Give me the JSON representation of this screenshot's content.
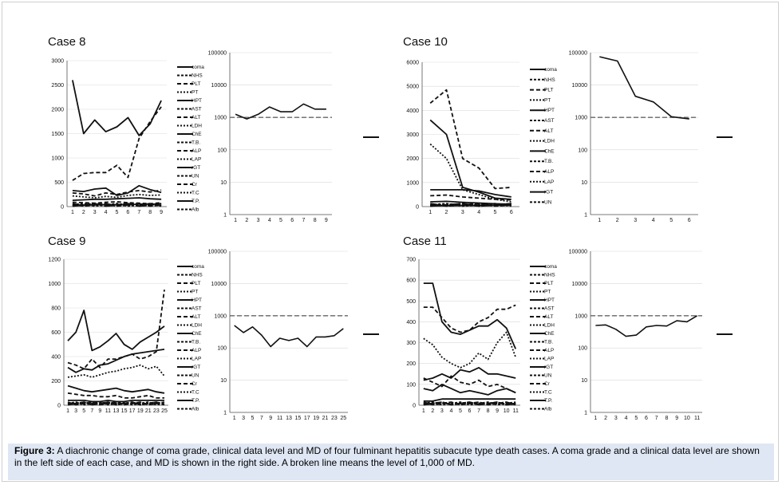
{
  "figure": {
    "caption_label": "Figure 3:",
    "caption_text": "A diachronic change of coma grade, clinical data level and MD of four fulminant hepatitis subacute type death cases. A coma grade and a clinical data level are shown in the left side of each case, and MD is shown in the right side. A broken line means the level of 1,000 of MD."
  },
  "chart_data": [
    {
      "type": "line",
      "panel": "Case 8 clinical",
      "title": "Case 8",
      "x": [
        1,
        2,
        3,
        4,
        5,
        6,
        7,
        8,
        9
      ],
      "ylim": [
        0,
        3000
      ],
      "yticks": [
        0,
        500,
        1000,
        1500,
        2000,
        2500,
        3000
      ],
      "legend": [
        "coma",
        "NHS",
        "PLT",
        "PT",
        "HPT",
        "AST",
        "ALT",
        "LDH",
        "ChE",
        "T.B.",
        "ALP",
        "LAP",
        "rGT",
        "UN",
        "Cr",
        "T.C",
        "T.P.",
        "Alb"
      ],
      "series": [
        {
          "name": "AST",
          "style": "solid",
          "values": [
            2600,
            1500,
            1780,
            1540,
            1640,
            1830,
            1460,
            1700,
            2180
          ]
        },
        {
          "name": "LDH",
          "style": "dashed",
          "values": [
            540,
            680,
            700,
            700,
            850,
            600,
            1400,
            1750,
            2050
          ]
        },
        {
          "name": "ALT",
          "style": "solid",
          "values": [
            330,
            310,
            360,
            380,
            230,
            280,
            430,
            350,
            290
          ]
        },
        {
          "name": "ALP",
          "style": "dashed",
          "values": [
            280,
            260,
            220,
            280,
            250,
            300,
            330,
            300,
            340
          ]
        },
        {
          "name": "LAP",
          "style": "dotted",
          "values": [
            220,
            200,
            180,
            210,
            190,
            230,
            250,
            230,
            240
          ]
        },
        {
          "name": "rGT",
          "style": "solid",
          "values": [
            130,
            140,
            150,
            150,
            160,
            170,
            180,
            160,
            150
          ]
        },
        {
          "name": "PLT",
          "style": "dashed",
          "values": [
            90,
            80,
            70,
            90,
            100,
            80,
            70,
            60,
            80
          ]
        },
        {
          "name": "coma",
          "style": "solid",
          "values": [
            30,
            30,
            40,
            40,
            40,
            40,
            50,
            50,
            50
          ]
        }
      ]
    },
    {
      "type": "line",
      "panel": "Case 8 MD",
      "x": [
        1,
        2,
        3,
        4,
        5,
        6,
        7,
        8,
        9
      ],
      "yscale": "log",
      "ylim": [
        1,
        100000
      ],
      "yticks": [
        1,
        10,
        100,
        1000,
        10000,
        100000
      ],
      "legend": [
        "MD"
      ],
      "reference_line": 1000,
      "series": [
        {
          "name": "MD",
          "values": [
            1250,
            900,
            1250,
            2100,
            1500,
            1500,
            2600,
            1800,
            1800
          ]
        }
      ]
    },
    {
      "type": "line",
      "panel": "Case 10 clinical",
      "title": "Case 10",
      "x": [
        1,
        2,
        3,
        4,
        5,
        6
      ],
      "ylim": [
        0,
        6000
      ],
      "yticks": [
        0,
        1000,
        2000,
        3000,
        4000,
        5000,
        6000
      ],
      "legend": [
        "coma",
        "NHS",
        "PLT",
        "PT",
        "HPT",
        "AST",
        "ALT",
        "LDH",
        "ChE",
        "T.B.",
        "ALP",
        "LAP",
        "rGT",
        "UN"
      ],
      "series": [
        {
          "name": "LDH",
          "style": "dashed",
          "values": [
            4300,
            4850,
            2000,
            1600,
            750,
            800
          ]
        },
        {
          "name": "AST",
          "style": "solid",
          "values": [
            3600,
            3000,
            800,
            600,
            350,
            300
          ]
        },
        {
          "name": "ALT",
          "style": "dotted",
          "values": [
            2600,
            2000,
            700,
            500,
            300,
            200
          ]
        },
        {
          "name": "ALP",
          "style": "solid",
          "values": [
            700,
            700,
            700,
            650,
            500,
            400
          ]
        },
        {
          "name": "LAP",
          "style": "dashed",
          "values": [
            450,
            480,
            400,
            350,
            300,
            280
          ]
        },
        {
          "name": "rGT",
          "style": "solid",
          "values": [
            200,
            220,
            180,
            150,
            120,
            100
          ]
        },
        {
          "name": "coma",
          "style": "solid",
          "values": [
            40,
            40,
            50,
            50,
            60,
            60
          ]
        }
      ]
    },
    {
      "type": "line",
      "panel": "Case 10 MD",
      "x": [
        1,
        2,
        3,
        4,
        5,
        6
      ],
      "yscale": "log",
      "ylim": [
        1,
        100000
      ],
      "yticks": [
        1,
        10,
        100,
        1000,
        10000,
        100000
      ],
      "legend": [
        "MD"
      ],
      "reference_line": 1000,
      "series": [
        {
          "name": "MD",
          "values": [
            75000,
            55000,
            4500,
            3000,
            1050,
            900
          ]
        }
      ]
    },
    {
      "type": "line",
      "panel": "Case 9 clinical",
      "title": "Case 9",
      "x": [
        1,
        3,
        5,
        7,
        9,
        11,
        13,
        15,
        17,
        19,
        21,
        23,
        25
      ],
      "ylim": [
        0,
        1200
      ],
      "yticks": [
        0,
        200,
        400,
        600,
        800,
        1000,
        1200
      ],
      "legend": [
        "coma",
        "NHS",
        "PLT",
        "PT",
        "HPT",
        "AST",
        "ALT",
        "LDH",
        "ChE",
        "T.B.",
        "ALP",
        "LAP",
        "rGT",
        "UN",
        "Cr",
        "T.C",
        "T.P.",
        "Alb"
      ],
      "series": [
        {
          "name": "AST",
          "style": "solid",
          "values": [
            530,
            600,
            780,
            450,
            480,
            530,
            590,
            500,
            460,
            520,
            560,
            600,
            650
          ]
        },
        {
          "name": "LAP",
          "style": "dashed",
          "values": [
            350,
            330,
            300,
            380,
            310,
            380,
            380,
            400,
            420,
            380,
            400,
            440,
            950
          ]
        },
        {
          "name": "ALT",
          "style": "solid",
          "values": [
            310,
            270,
            300,
            290,
            330,
            340,
            370,
            400,
            420,
            430,
            440,
            450,
            460
          ]
        },
        {
          "name": "ALP",
          "style": "dotted",
          "values": [
            230,
            240,
            250,
            230,
            250,
            270,
            280,
            300,
            310,
            330,
            300,
            320,
            240
          ]
        },
        {
          "name": "rGT",
          "style": "solid",
          "values": [
            160,
            140,
            120,
            110,
            120,
            130,
            140,
            120,
            110,
            120,
            130,
            110,
            100
          ]
        },
        {
          "name": "PLT",
          "style": "dashed",
          "values": [
            100,
            90,
            80,
            80,
            70,
            70,
            80,
            60,
            60,
            70,
            80,
            60,
            60
          ]
        },
        {
          "name": "coma",
          "style": "solid",
          "values": [
            40,
            40,
            40,
            30,
            30,
            40,
            30,
            30,
            40,
            40,
            40,
            40,
            40
          ]
        }
      ]
    },
    {
      "type": "line",
      "panel": "Case 9 MD",
      "x": [
        1,
        3,
        5,
        7,
        9,
        11,
        13,
        15,
        17,
        19,
        21,
        23,
        25
      ],
      "yscale": "log",
      "ylim": [
        1,
        100000
      ],
      "yticks": [
        1,
        10,
        100,
        1000,
        10000,
        100000
      ],
      "legend": [
        "MD"
      ],
      "reference_line": 1000,
      "series": [
        {
          "name": "MD",
          "values": [
            500,
            300,
            450,
            250,
            110,
            200,
            170,
            200,
            110,
            220,
            220,
            240,
            400
          ]
        }
      ]
    },
    {
      "type": "line",
      "panel": "Case 11 clinical",
      "title": "Case 11",
      "x": [
        1,
        2,
        3,
        4,
        5,
        6,
        7,
        8,
        9,
        10,
        11
      ],
      "ylim": [
        0,
        700
      ],
      "yticks": [
        0,
        100,
        200,
        300,
        400,
        500,
        600,
        700
      ],
      "legend": [
        "coma",
        "NHS",
        "PLT",
        "PT",
        "HPT",
        "AST",
        "ALT",
        "LDH",
        "ChE",
        "T.B.",
        "ALP",
        "LAP",
        "rGT",
        "UN",
        "Cr",
        "T.C",
        "T.P.",
        "Alb"
      ],
      "series": [
        {
          "name": "AST",
          "style": "solid",
          "values": [
            585,
            585,
            400,
            350,
            340,
            360,
            380,
            380,
            410,
            370,
            270
          ]
        },
        {
          "name": "LDH",
          "style": "dashed",
          "values": [
            470,
            470,
            420,
            370,
            350,
            360,
            400,
            420,
            460,
            460,
            480
          ]
        },
        {
          "name": "ALT",
          "style": "dotted",
          "values": [
            320,
            290,
            230,
            200,
            180,
            200,
            250,
            220,
            300,
            350,
            230
          ]
        },
        {
          "name": "ALP",
          "style": "solid",
          "values": [
            120,
            130,
            150,
            130,
            170,
            160,
            180,
            150,
            150,
            140,
            130
          ]
        },
        {
          "name": "LAP",
          "style": "dashed",
          "values": [
            130,
            110,
            90,
            140,
            110,
            100,
            120,
            90,
            100,
            80,
            60
          ]
        },
        {
          "name": "rGT",
          "style": "solid",
          "values": [
            80,
            70,
            100,
            80,
            60,
            70,
            60,
            50,
            70,
            80,
            60
          ]
        },
        {
          "name": "coma",
          "style": "solid",
          "values": [
            20,
            20,
            30,
            30,
            30,
            30,
            30,
            30,
            30,
            30,
            30
          ]
        }
      ]
    },
    {
      "type": "line",
      "panel": "Case 11 MD",
      "x": [
        1,
        2,
        3,
        4,
        5,
        6,
        7,
        8,
        9,
        10,
        11
      ],
      "yscale": "log",
      "ylim": [
        1,
        100000
      ],
      "yticks": [
        1,
        10,
        100,
        1000,
        10000,
        100000
      ],
      "legend": [
        "MD"
      ],
      "reference_line": 1000,
      "series": [
        {
          "name": "MD",
          "values": [
            500,
            520,
            380,
            230,
            250,
            450,
            500,
            480,
            700,
            650,
            1000
          ]
        }
      ]
    }
  ]
}
